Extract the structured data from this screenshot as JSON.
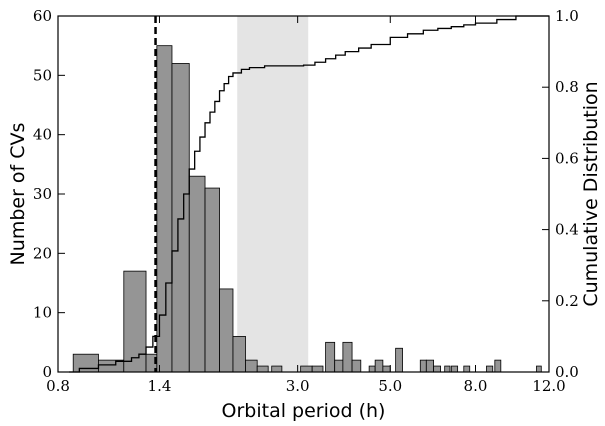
{
  "chart_data": {
    "type": "histogram",
    "xlabel": "Orbital period (h)",
    "ylabel_left": "Number of CVs",
    "ylabel_right": "Cumulative Distribution",
    "x_scale": "log",
    "xlim": [
      0.8,
      12.0
    ],
    "ylim_left": [
      0,
      60
    ],
    "ylim_right": [
      0,
      1.0
    ],
    "x_ticks": [
      0.8,
      1.4,
      3.0,
      5.0,
      8.0,
      12.0
    ],
    "x_tick_labels": [
      "0.8",
      "1.4",
      "3.0",
      "5.0",
      "8.0",
      "12.0"
    ],
    "y_ticks_left": [
      0,
      10,
      20,
      30,
      40,
      50,
      60
    ],
    "y_tick_labels_left": [
      "0",
      "10",
      "20",
      "30",
      "40",
      "50",
      "60"
    ],
    "y_ticks_right": [
      0,
      0.2,
      0.4,
      0.6,
      0.8,
      1.0
    ],
    "y_tick_labels_right": [
      "0.0",
      "0.2",
      "0.4",
      "0.6",
      "0.8",
      "1.0"
    ],
    "bins": [
      {
        "x0": 0.87,
        "x1": 1.0,
        "count": 3
      },
      {
        "x0": 1.0,
        "x1": 1.15,
        "count": 2
      },
      {
        "x0": 1.15,
        "x1": 1.3,
        "count": 17
      },
      {
        "x0": 1.3,
        "x1": 1.38,
        "count": 3
      },
      {
        "x0": 1.38,
        "x1": 1.5,
        "count": 55
      },
      {
        "x0": 1.5,
        "x1": 1.65,
        "count": 52
      },
      {
        "x0": 1.65,
        "x1": 1.8,
        "count": 33
      },
      {
        "x0": 1.8,
        "x1": 1.95,
        "count": 31
      },
      {
        "x0": 1.95,
        "x1": 2.1,
        "count": 14
      },
      {
        "x0": 2.1,
        "x1": 2.25,
        "count": 6
      },
      {
        "x0": 2.25,
        "x1": 2.4,
        "count": 2
      },
      {
        "x0": 2.4,
        "x1": 2.55,
        "count": 1
      },
      {
        "x0": 2.6,
        "x1": 2.75,
        "count": 1
      },
      {
        "x0": 3.05,
        "x1": 3.25,
        "count": 1
      },
      {
        "x0": 3.25,
        "x1": 3.45,
        "count": 1
      },
      {
        "x0": 3.5,
        "x1": 3.68,
        "count": 5
      },
      {
        "x0": 3.68,
        "x1": 3.85,
        "count": 2
      },
      {
        "x0": 3.85,
        "x1": 4.05,
        "count": 5
      },
      {
        "x0": 4.05,
        "x1": 4.25,
        "count": 2
      },
      {
        "x0": 4.45,
        "x1": 4.6,
        "count": 1
      },
      {
        "x0": 4.6,
        "x1": 4.8,
        "count": 2
      },
      {
        "x0": 4.8,
        "x1": 5.0,
        "count": 1
      },
      {
        "x0": 5.15,
        "x1": 5.35,
        "count": 4
      },
      {
        "x0": 5.9,
        "x1": 6.1,
        "count": 2
      },
      {
        "x0": 6.1,
        "x1": 6.35,
        "count": 2
      },
      {
        "x0": 6.35,
        "x1": 6.6,
        "count": 1
      },
      {
        "x0": 6.75,
        "x1": 6.95,
        "count": 1
      },
      {
        "x0": 7.0,
        "x1": 7.25,
        "count": 1
      },
      {
        "x0": 7.5,
        "x1": 7.75,
        "count": 1
      },
      {
        "x0": 8.5,
        "x1": 8.8,
        "count": 1
      },
      {
        "x0": 8.9,
        "x1": 9.2,
        "count": 2
      },
      {
        "x0": 11.2,
        "x1": 11.5,
        "count": 1
      }
    ],
    "cumulative": {
      "x": [
        0.85,
        0.9,
        1.0,
        1.1,
        1.2,
        1.25,
        1.3,
        1.35,
        1.4,
        1.45,
        1.5,
        1.55,
        1.6,
        1.65,
        1.7,
        1.75,
        1.8,
        1.85,
        1.9,
        1.95,
        2.0,
        2.05,
        2.1,
        2.2,
        2.3,
        2.5,
        2.7,
        2.9,
        3.1,
        3.3,
        3.5,
        3.7,
        3.9,
        4.2,
        4.5,
        5.0,
        5.5,
        6.0,
        6.5,
        7.0,
        7.5,
        8.0,
        9.0,
        10.0,
        12.0
      ],
      "y": [
        0.0,
        0.01,
        0.02,
        0.03,
        0.04,
        0.05,
        0.07,
        0.1,
        0.16,
        0.25,
        0.34,
        0.43,
        0.5,
        0.57,
        0.62,
        0.66,
        0.7,
        0.73,
        0.76,
        0.79,
        0.81,
        0.83,
        0.84,
        0.85,
        0.855,
        0.86,
        0.86,
        0.86,
        0.862,
        0.87,
        0.88,
        0.89,
        0.9,
        0.91,
        0.92,
        0.94,
        0.95,
        0.96,
        0.965,
        0.97,
        0.975,
        0.98,
        0.99,
        1.0,
        1.0
      ]
    },
    "period_gap": {
      "x0": 2.15,
      "x1": 3.18
    },
    "reference_line": {
      "x": 1.37
    }
  }
}
